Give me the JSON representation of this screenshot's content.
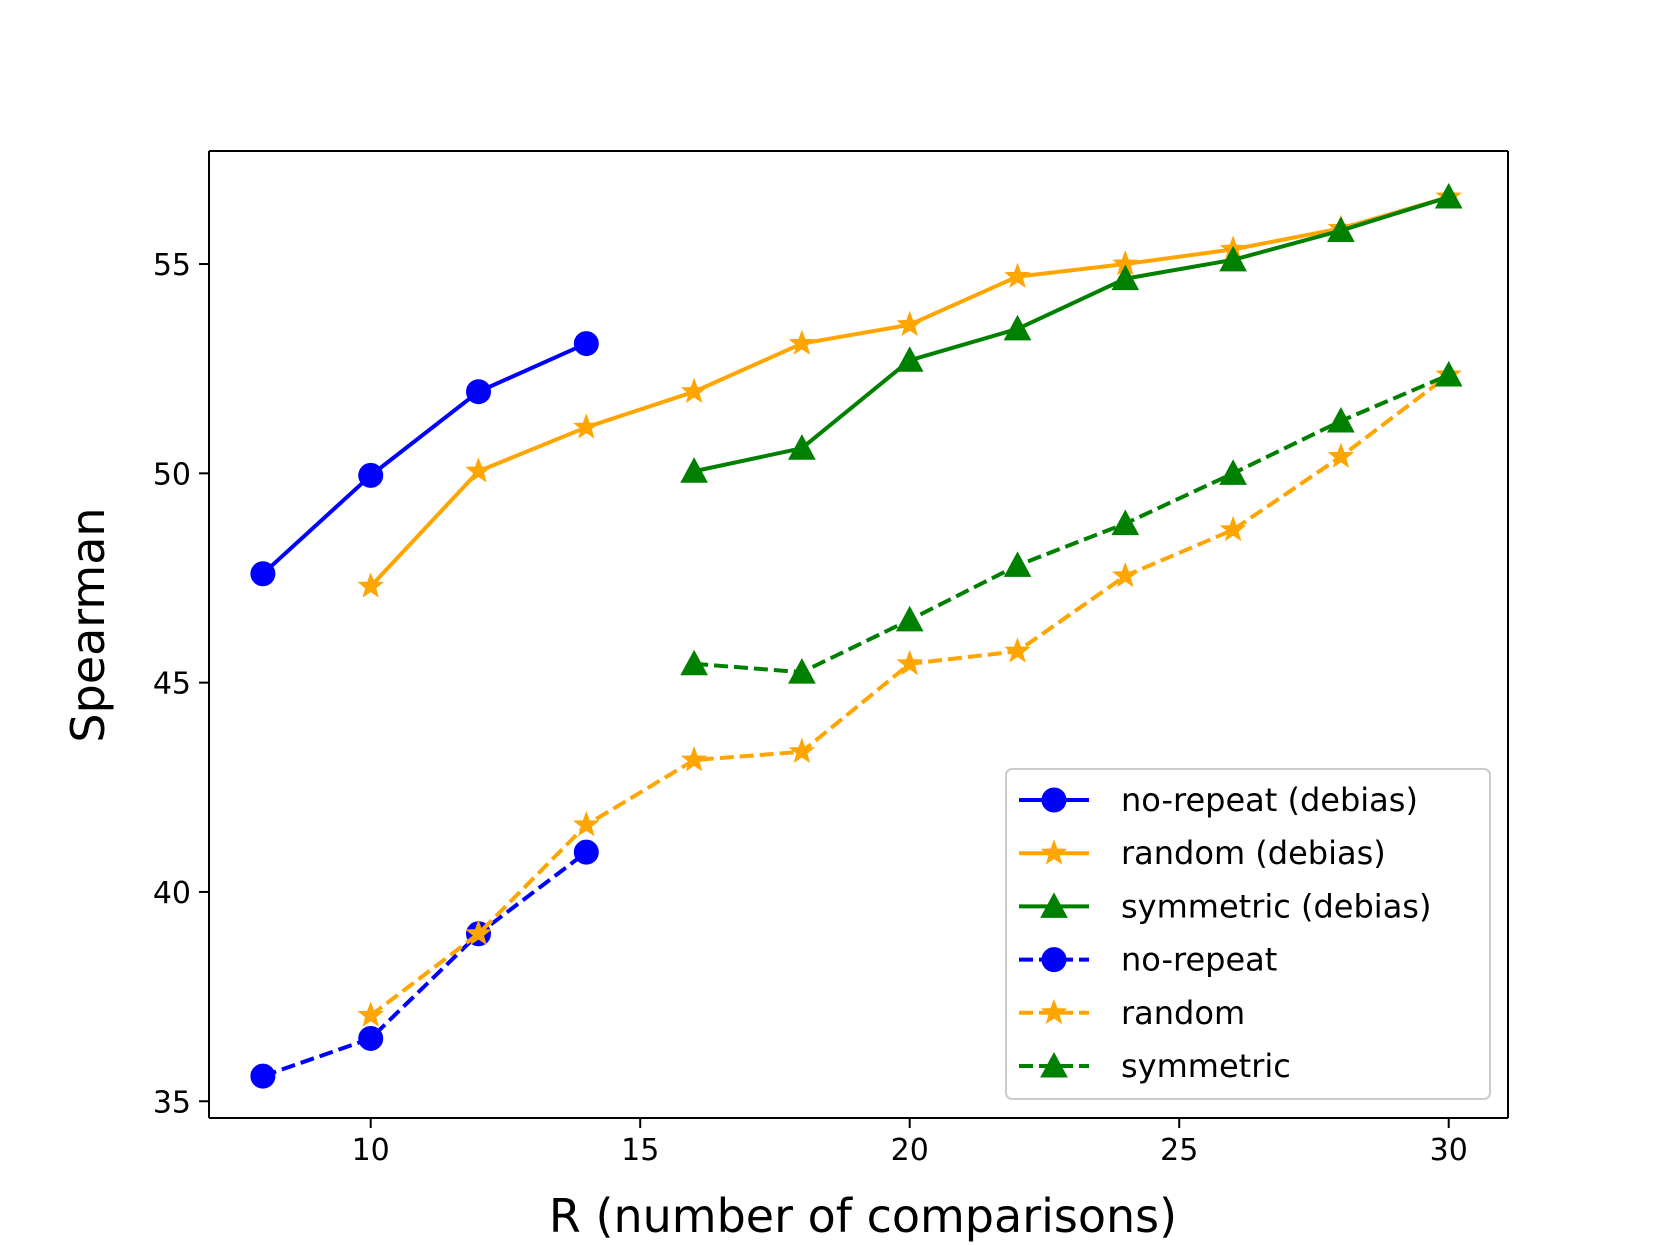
{
  "chart_data": {
    "type": "line",
    "title": "",
    "xlabel": "R (number of comparisons)",
    "ylabel": "Spearman",
    "xlim": [
      7,
      31.1
    ],
    "ylim": [
      34.6,
      57.7
    ],
    "xticks": [
      10,
      15,
      20,
      25,
      30
    ],
    "yticks": [
      35,
      40,
      45,
      50,
      55
    ],
    "xtick_labels": [
      "10",
      "15",
      "20",
      "25",
      "30"
    ],
    "ytick_labels": [
      "35",
      "40",
      "45",
      "50",
      "55"
    ],
    "grid": false,
    "legend_position": "lower-right",
    "series": [
      {
        "name": "no-repeat (debias)",
        "color": "#0000ff",
        "style": "solid",
        "marker": "circle",
        "x": [
          8,
          10,
          12,
          14
        ],
        "y": [
          47.6,
          49.95,
          51.95,
          53.1
        ]
      },
      {
        "name": "random (debias)",
        "color": "#ffa500",
        "style": "solid",
        "marker": "star",
        "x": [
          10,
          12,
          14,
          16,
          18,
          20,
          22,
          24,
          26,
          28,
          30
        ],
        "y": [
          47.3,
          50.05,
          51.1,
          51.95,
          53.1,
          53.55,
          54.7,
          55.0,
          55.35,
          55.85,
          56.6
        ]
      },
      {
        "name": "symmetric (debias)",
        "color": "#008000",
        "style": "solid",
        "marker": "triangle",
        "x": [
          16,
          18,
          20,
          22,
          24,
          26,
          28,
          30
        ],
        "y": [
          50.05,
          50.6,
          52.7,
          53.45,
          54.65,
          55.1,
          55.8,
          56.6
        ]
      },
      {
        "name": "no-repeat",
        "color": "#0000ff",
        "style": "dashed",
        "marker": "circle",
        "x": [
          8,
          10,
          12,
          14
        ],
        "y": [
          35.6,
          36.5,
          39.0,
          40.95
        ]
      },
      {
        "name": "random",
        "color": "#ffa500",
        "style": "dashed",
        "marker": "star",
        "x": [
          10,
          12,
          14,
          16,
          18,
          20,
          22,
          24,
          26,
          28,
          30
        ],
        "y": [
          37.05,
          39.0,
          41.6,
          43.15,
          43.35,
          45.45,
          45.75,
          47.55,
          48.65,
          50.4,
          52.35
        ]
      },
      {
        "name": "symmetric",
        "color": "#008000",
        "style": "dashed",
        "marker": "triangle",
        "x": [
          16,
          18,
          20,
          22,
          24,
          26,
          28,
          30
        ],
        "y": [
          45.45,
          45.25,
          46.5,
          47.8,
          48.8,
          50.0,
          51.25,
          52.35
        ]
      }
    ]
  }
}
